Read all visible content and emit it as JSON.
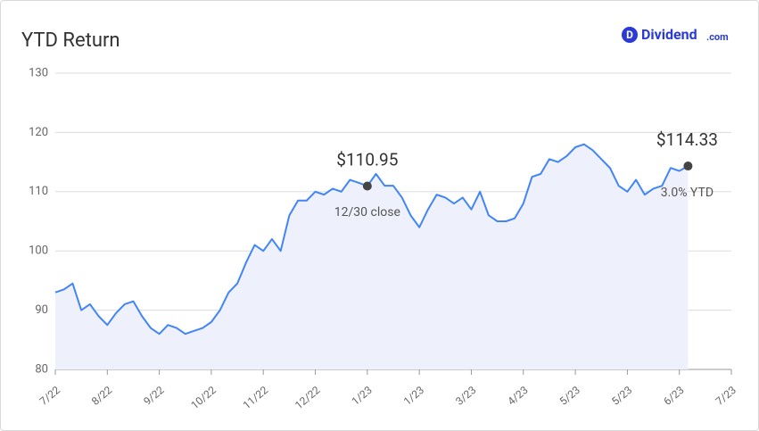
{
  "logo": {
    "mark": "D",
    "name": "Dividend",
    "suffix": ".com"
  },
  "chart_data": {
    "type": "line",
    "title": "YTD Return",
    "categories": [
      "7/22",
      null,
      null,
      null,
      null,
      null,
      "8/22",
      null,
      null,
      null,
      null,
      null,
      "9/22",
      null,
      null,
      null,
      null,
      null,
      "10/22",
      null,
      null,
      null,
      null,
      null,
      "11/22",
      null,
      null,
      null,
      null,
      null,
      "12/22",
      null,
      null,
      null,
      null,
      null,
      "1/23",
      null,
      null,
      null,
      null,
      null,
      "1/23",
      null,
      null,
      null,
      null,
      null,
      "3/23",
      null,
      null,
      null,
      null,
      null,
      "4/23",
      null,
      null,
      null,
      null,
      null,
      "5/23",
      null,
      null,
      null,
      null,
      null,
      "5/23",
      null,
      null,
      null,
      null,
      null,
      "6/23",
      null,
      null,
      null,
      null,
      null,
      "7/23"
    ],
    "series": [
      {
        "name": "YTD Return",
        "color": "#4285f4",
        "values": [
          93,
          93.5,
          94.5,
          90,
          91,
          89,
          87.5,
          89.5,
          91,
          91.5,
          89,
          87,
          86,
          87.5,
          87,
          86,
          86.5,
          87,
          88,
          90,
          93,
          94.5,
          98,
          101,
          100,
          102,
          100,
          106,
          108.5,
          108.5,
          110,
          109.5,
          110.5,
          110,
          112,
          111.5,
          110.95,
          113,
          111,
          111,
          109,
          106,
          104,
          107,
          109.5,
          109,
          108,
          109,
          107,
          110,
          106,
          105,
          105,
          105.5,
          108,
          112.5,
          113,
          115.5,
          115,
          116,
          117.5,
          118,
          117,
          115.5,
          114,
          111,
          110,
          112,
          109.5,
          110.5,
          111,
          114,
          113.5,
          114.33,
          null,
          null,
          null,
          null,
          null
        ]
      }
    ],
    "annotations": [
      {
        "text": "$110.95",
        "note": "12/30 close"
      },
      {
        "text": "$114.33",
        "note": "3.0% YTD"
      }
    ],
    "ylim": [
      80,
      130
    ],
    "yticks": [
      80,
      90,
      100,
      110,
      120,
      130
    ],
    "grid": true,
    "area_fill": "#eef0fb"
  }
}
